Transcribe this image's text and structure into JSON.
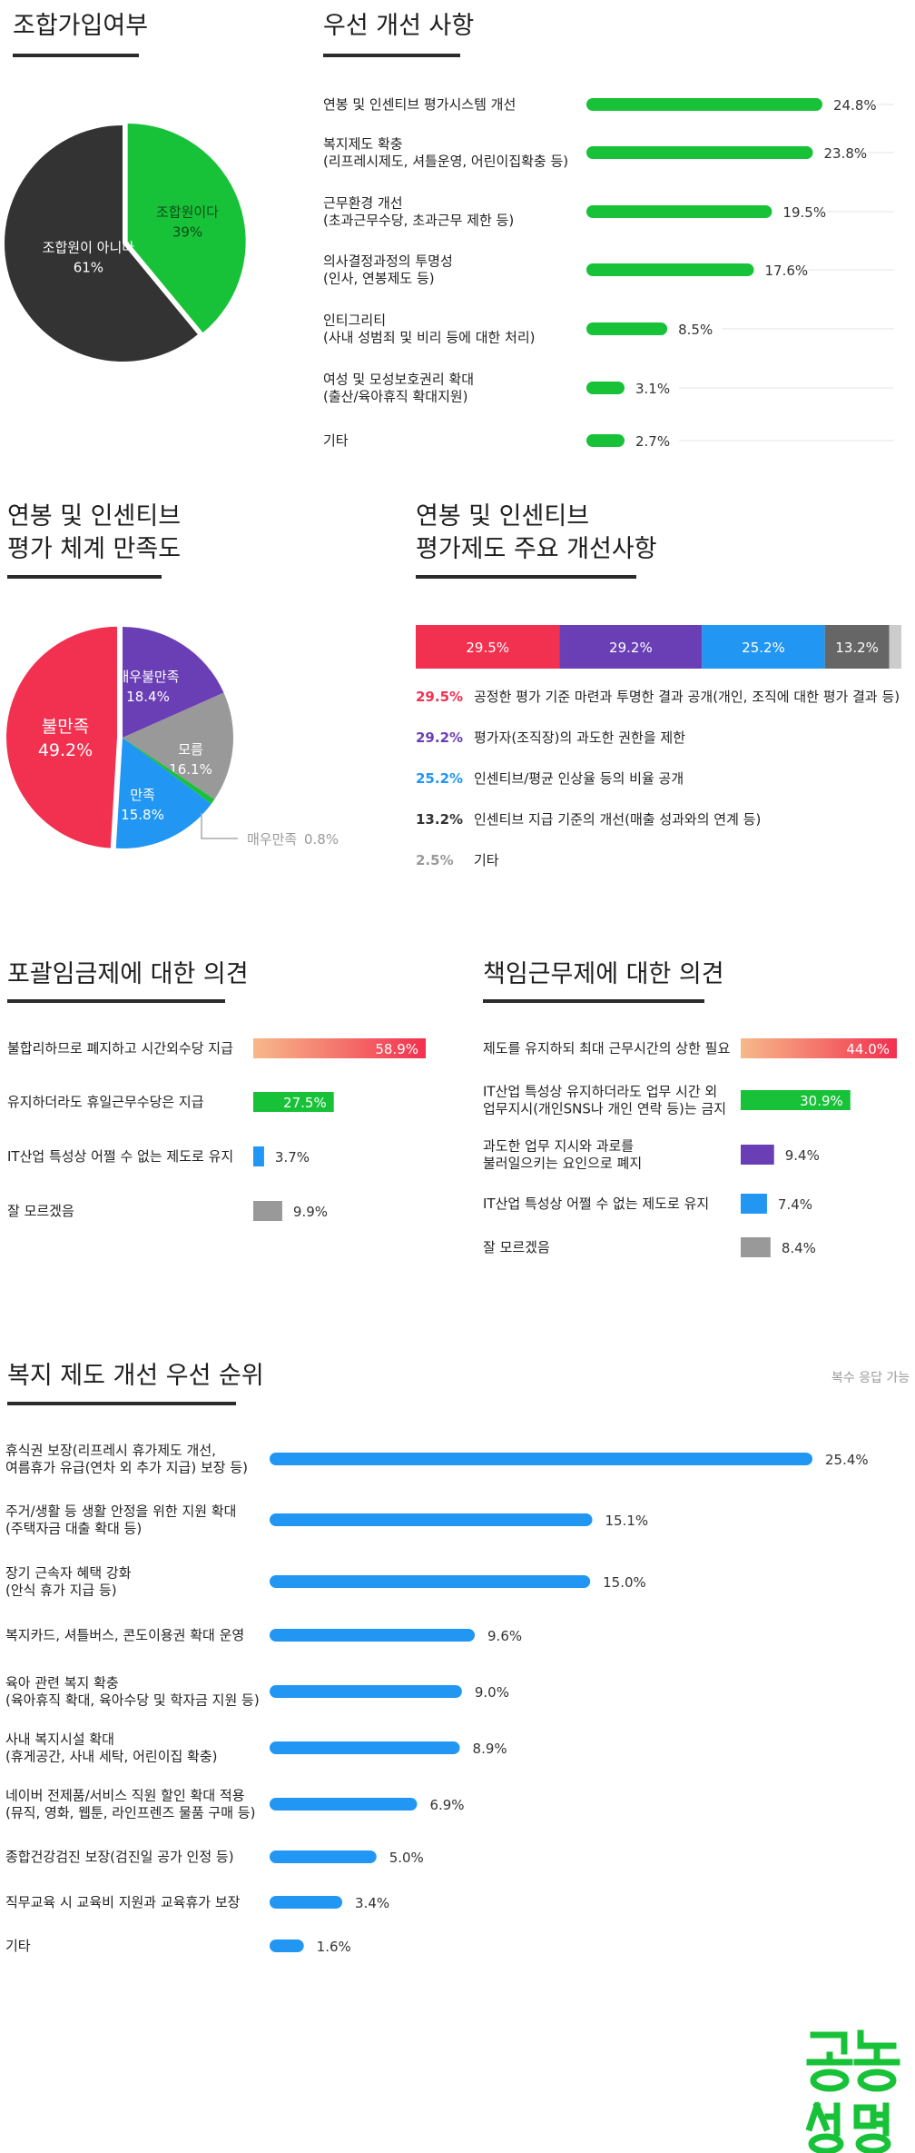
{
  "sections": {
    "union_title": "조합가입여부",
    "priority_title": "우선 개선 사항",
    "satisfaction_title_1": "연봉 및 인센티브",
    "satisfaction_title_2": "평가 체계 만족도",
    "improve_title_1": "연봉 및 인센티브",
    "improve_title_2": "평가제도 주요 개선사항",
    "comprehensive_title": "포괄임금제에 대한 의견",
    "responsible_title": "책임근무제에 대한 의견",
    "welfare_title": "복지 제도 개선 우선 순위",
    "welfare_note": "복수 응답 가능",
    "logo_text": "공동성명"
  },
  "chart_data": [
    {
      "id": "union",
      "type": "pie",
      "title": "조합가입여부",
      "slices": [
        {
          "label": "조합원이다",
          "value": 39,
          "display": "39%",
          "color": "#18c238"
        },
        {
          "label": "조합원이 아니다",
          "value": 61,
          "display": "61%",
          "color": "#333333"
        }
      ]
    },
    {
      "id": "priority",
      "type": "bar",
      "title": "우선 개선 사항",
      "color": "#18c238",
      "max": 24.8,
      "items": [
        {
          "lines": [
            "연봉 및 인센티브 평가시스템 개선"
          ],
          "value": 24.8,
          "display": "24.8%"
        },
        {
          "lines": [
            "복지제도 확충",
            "(리프레시제도, 셔틀운영, 어린이집확충 등)"
          ],
          "value": 23.8,
          "display": "23.8%"
        },
        {
          "lines": [
            "근무환경 개선",
            "(초과근무수당, 초과근무 제한 등)"
          ],
          "value": 19.5,
          "display": "19.5%"
        },
        {
          "lines": [
            "의사결정과정의 투명성",
            "(인사, 연봉제도 등)"
          ],
          "value": 17.6,
          "display": "17.6%"
        },
        {
          "lines": [
            "인티그리티",
            "(사내 성범죄 및 비리 등에 대한 처리)"
          ],
          "value": 8.5,
          "display": "8.5%"
        },
        {
          "lines": [
            "여성 및 모성보호권리 확대",
            "(출산/육아휴직 확대지원)"
          ],
          "value": 3.1,
          "display": "3.1%"
        },
        {
          "lines": [
            "기타"
          ],
          "value": 2.7,
          "display": "2.7%"
        }
      ]
    },
    {
      "id": "satisfaction",
      "type": "pie",
      "title": "연봉 및 인센티브 평가 체계 만족도",
      "slices": [
        {
          "label": "매우불만족",
          "value": 18.4,
          "display": "18.4%",
          "color": "#6a3fb5"
        },
        {
          "label": "모름",
          "value": 16.1,
          "display": "16.1%",
          "color": "#999999"
        },
        {
          "label": "매우만족",
          "value": 0.8,
          "display": "0.8%",
          "color": "#18c238"
        },
        {
          "label": "만족",
          "value": 15.8,
          "display": "15.8%",
          "color": "#2196f3"
        },
        {
          "label": "불만족",
          "value": 49.2,
          "display": "49.2%",
          "color": "#f2304f"
        }
      ]
    },
    {
      "id": "improvement",
      "type": "bar",
      "title": "연봉 및 인센티브 평가제도 주요 개선사항",
      "stacked": true,
      "items": [
        {
          "value": 29.5,
          "display": "29.5%",
          "color": "#f2304f",
          "label": "공정한 평가 기준 마련과 투명한 결과 공개(개인, 조직에 대한 평가 결과 등)"
        },
        {
          "value": 29.2,
          "display": "29.2%",
          "color": "#6a3fb5",
          "label": "평가자(조직장)의 과도한 권한을 제한"
        },
        {
          "value": 25.2,
          "display": "25.2%",
          "color": "#2196f3",
          "label": "인센티브/평균 인상율 등의 비율 공개"
        },
        {
          "value": 13.2,
          "display": "13.2%",
          "color": "#666666",
          "label": "인센티브 지급 기준의 개선(매출 성과와의 연계 등)"
        },
        {
          "value": 2.5,
          "display": "2.5%",
          "color": "#cccccc",
          "label": "기타"
        }
      ]
    },
    {
      "id": "comprehensive",
      "type": "bar",
      "title": "포괄임금제에 대한 의견",
      "max": 58.9,
      "items": [
        {
          "lines": [
            "불합리하므로 폐지하고 시간외수당 지급"
          ],
          "value": 58.9,
          "display": "58.9%",
          "color": "gradient",
          "inside": true
        },
        {
          "lines": [
            "유지하더라도 휴일근무수당은 지급"
          ],
          "value": 27.5,
          "display": "27.5%",
          "color": "#18c238",
          "inside": true
        },
        {
          "lines": [
            "IT산업  특성상 어쩔 수 없는 제도로 유지"
          ],
          "value": 3.7,
          "display": "3.7%",
          "color": "#2196f3",
          "inside": false
        },
        {
          "lines": [
            "잘 모르겠음"
          ],
          "value": 9.9,
          "display": "9.9%",
          "color": "#999999",
          "inside": false
        }
      ]
    },
    {
      "id": "responsible",
      "type": "bar",
      "title": "책임근무제에 대한 의견",
      "max": 44.0,
      "items": [
        {
          "lines": [
            "제도를 유지하되 최대 근무시간의 상한 필요"
          ],
          "value": 44.0,
          "display": "44.0%",
          "color": "gradient",
          "inside": true
        },
        {
          "lines": [
            "IT산업 특성상 유지하더라도 업무 시간 외",
            "업무지시(개인SNS나 개인 연락 등)는 금지"
          ],
          "value": 30.9,
          "display": "30.9%",
          "color": "#18c238",
          "inside": true
        },
        {
          "lines": [
            "과도한 업무 지시와 과로를",
            "불러일으키는 요인으로 폐지"
          ],
          "value": 9.4,
          "display": "9.4%",
          "color": "#6a3fb5",
          "inside": false
        },
        {
          "lines": [
            "IT산업  특성상 어쩔 수 없는 제도로 유지"
          ],
          "value": 7.4,
          "display": "7.4%",
          "color": "#2196f3",
          "inside": false
        },
        {
          "lines": [
            "잘 모르겠음"
          ],
          "value": 8.4,
          "display": "8.4%",
          "color": "#999999",
          "inside": false
        }
      ]
    },
    {
      "id": "welfare",
      "type": "bar",
      "title": "복지 제도 개선 우선 순위",
      "color": "#2196f3",
      "max": 25.4,
      "items": [
        {
          "lines": [
            "휴식권 보장(리프레시 휴가제도 개선,",
            "여름휴가 유급(연차 외 추가 지급) 보장 등)"
          ],
          "value": 25.4,
          "display": "25.4%"
        },
        {
          "lines": [
            "주거/생활 등 생활 안정을 위한 지원 확대",
            "(주택자금 대출 확대 등)"
          ],
          "value": 15.1,
          "display": "15.1%"
        },
        {
          "lines": [
            "장기 근속자 혜택 강화",
            "(안식 휴가 지급 등)"
          ],
          "value": 15.0,
          "display": "15.0%"
        },
        {
          "lines": [
            "복지카드, 셔틀버스, 콘도이용권 확대 운영"
          ],
          "value": 9.6,
          "display": "9.6%"
        },
        {
          "lines": [
            "육아 관련 복지 확충",
            "(육아휴직 확대, 육아수당 및 학자금 지원 등)"
          ],
          "value": 9.0,
          "display": "9.0%"
        },
        {
          "lines": [
            "사내 복지시설 확대",
            "(휴게공간, 사내 세탁, 어린이집 확충)"
          ],
          "value": 8.9,
          "display": "8.9%"
        },
        {
          "lines": [
            "네이버 전제품/서비스 직원 할인 확대 적용",
            "(뮤직, 영화, 웹툰, 라인프렌즈 물품 구매 등)"
          ],
          "value": 6.9,
          "display": "6.9%"
        },
        {
          "lines": [
            "종합건강검진 보장(검진일 공가 인정 등)"
          ],
          "value": 5.0,
          "display": "5.0%"
        },
        {
          "lines": [
            "직무교육 시 교육비 지원과 교육휴가 보장"
          ],
          "value": 3.4,
          "display": "3.4%"
        },
        {
          "lines": [
            "기타"
          ],
          "value": 1.6,
          "display": "1.6%"
        }
      ]
    }
  ]
}
